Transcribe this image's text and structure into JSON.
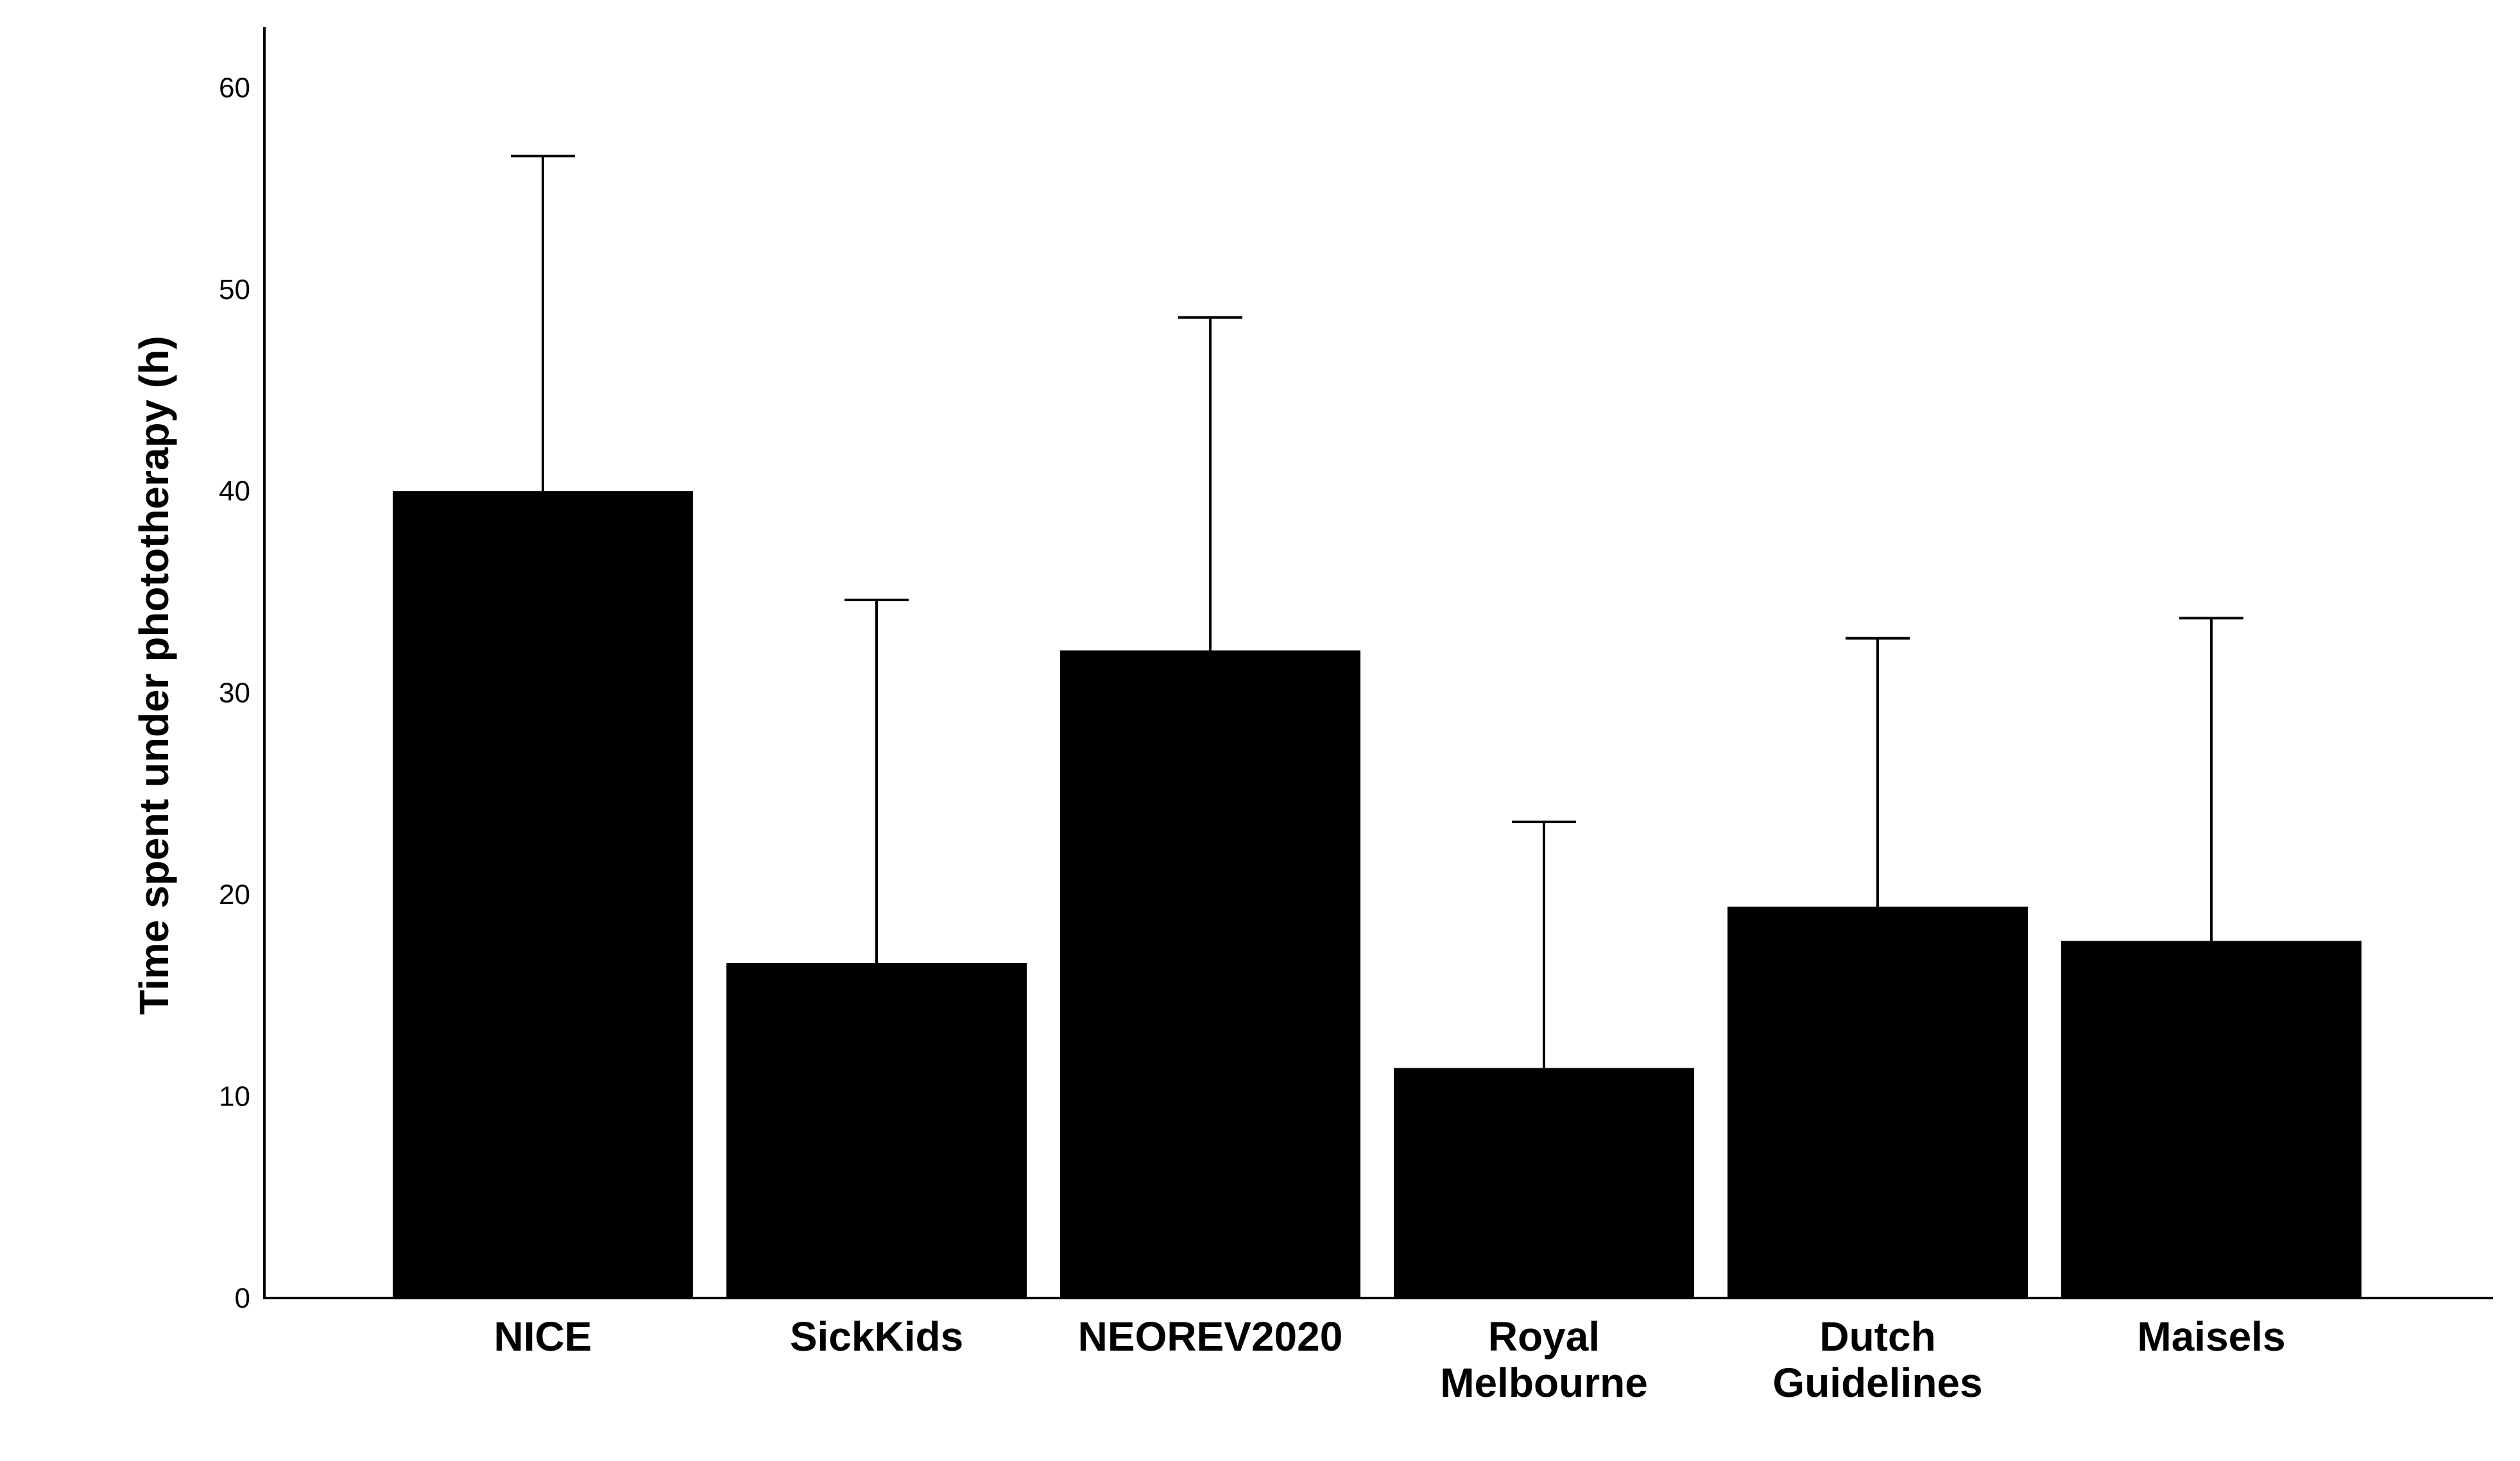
{
  "chart_data": {
    "type": "bar",
    "title": "",
    "xlabel": "",
    "ylabel": "Time spent under phototherapy (h)",
    "categories": [
      [
        "NICE"
      ],
      [
        "SickKids"
      ],
      [
        "NEOREV2020"
      ],
      [
        "Royal",
        "Melbourne"
      ],
      [
        "Dutch",
        "Guidelines"
      ],
      [
        "Maisels"
      ]
    ],
    "values": [
      40.0,
      16.6,
      32.1,
      11.4,
      19.4,
      17.7
    ],
    "error_upper": [
      56.6,
      34.6,
      48.6,
      23.6,
      32.7,
      33.7
    ],
    "error_lower": [
      40.0,
      0,
      32.1,
      0,
      19.4,
      17.7
    ],
    "ylim": [
      0,
      63
    ],
    "yticks": [
      0,
      10,
      20,
      30,
      40,
      50,
      60
    ],
    "grid": false,
    "colors": {
      "bar": "#000000",
      "axis": "#000000",
      "background": "#ffffff"
    }
  }
}
